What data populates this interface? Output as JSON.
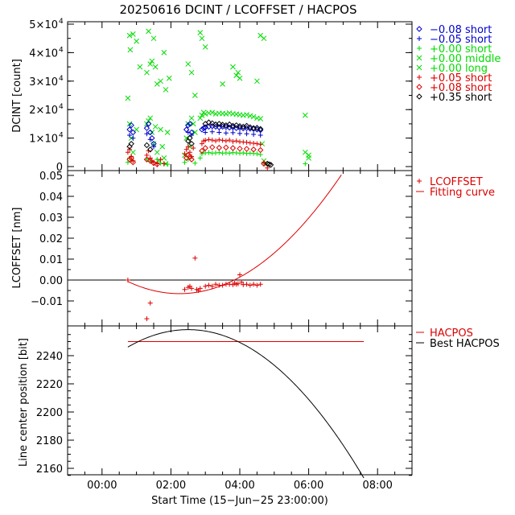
{
  "chart_data": [
    {
      "type": "scatter",
      "title": "20250616 DCINT / LCOFFSET / HACPOS",
      "ylabel": "DCINT [count]",
      "ylim": [
        0,
        50000
      ],
      "yticks": [
        {
          "v": 50000,
          "m": "5",
          "e": "4"
        },
        {
          "v": 40000,
          "m": "4",
          "e": "4"
        },
        {
          "v": 30000,
          "m": "3",
          "e": "4"
        },
        {
          "v": 20000,
          "m": "2",
          "e": "4"
        },
        {
          "v": 10000,
          "m": "1",
          "e": "4"
        },
        {
          "v": 0,
          "m": "0",
          "e": ""
        }
      ],
      "legend_position": "right",
      "legend": [
        {
          "text": "−0.08 short",
          "color": "#0000cc",
          "marker": "diamond"
        },
        {
          "text": "−0.05 short",
          "color": "#0000cc",
          "marker": "plus"
        },
        {
          "text": "+0.00 short",
          "color": "#00dd00",
          "marker": "plus"
        },
        {
          "text": "+0.00 middle",
          "color": "#00dd00",
          "marker": "x"
        },
        {
          "text": "+0.00 long",
          "color": "#00dd00",
          "marker": "x"
        },
        {
          "text": "+0.05 short",
          "color": "#dd0000",
          "marker": "plus"
        },
        {
          "text": "+0.08 short",
          "color": "#dd0000",
          "marker": "diamond"
        },
        {
          "text": "+0.35 short",
          "color": "#000000",
          "marker": "diamond"
        }
      ],
      "series": [
        {
          "name": "+0.00 long",
          "marker": "x",
          "color": "#00dd00",
          "x": [
            0.8,
            0.82,
            0.9,
            1.0,
            1.1,
            1.3,
            1.35,
            1.4,
            1.45,
            1.5,
            1.55,
            1.6,
            1.7,
            1.8,
            1.85,
            1.95,
            2.5,
            2.6,
            2.7,
            2.85,
            2.9,
            3.0,
            3.5,
            3.8,
            3.9,
            3.95,
            4.0,
            4.5,
            4.6,
            4.7,
            5.9,
            6.0
          ],
          "y": [
            46000,
            41000,
            46500,
            44000,
            35000,
            33000,
            47500,
            36000,
            37000,
            45000,
            35000,
            29000,
            30000,
            40000,
            27000,
            31000,
            36000,
            33000,
            25000,
            47000,
            45000,
            42000,
            29000,
            35000,
            32000,
            33000,
            31000,
            30000,
            46000,
            45000,
            18000,
            3000
          ]
        },
        {
          "name": "+0.00 middle",
          "marker": "x",
          "color": "#00dd00",
          "x": [
            0.75,
            0.8,
            0.85,
            0.9,
            1.0,
            1.3,
            1.35,
            1.4,
            1.45,
            1.5,
            1.55,
            1.6,
            1.65,
            1.7,
            1.75,
            1.8,
            1.85,
            1.9,
            2.4,
            2.45,
            2.5,
            2.55,
            2.6,
            2.65,
            2.7,
            2.85,
            2.9,
            2.95,
            3.0,
            3.1,
            3.2,
            3.3,
            3.4,
            3.5,
            3.6,
            3.7,
            3.8,
            3.9,
            4.0,
            4.1,
            4.2,
            4.3,
            4.4,
            4.5,
            4.6,
            4.65,
            4.7,
            4.75,
            5.9,
            6.0
          ],
          "y": [
            24000,
            15000,
            10000,
            5000,
            13000,
            15000,
            16000,
            17000,
            12000,
            8000,
            14000,
            5000,
            2000,
            13000,
            7000,
            3000,
            1000,
            12000,
            4000,
            10000,
            15000,
            7000,
            17000,
            15000,
            12000,
            17000,
            18000,
            19000,
            18500,
            18800,
            19000,
            18500,
            18700,
            18600,
            18500,
            18800,
            18500,
            18400,
            18200,
            18000,
            18200,
            17800,
            17500,
            17000,
            16800,
            8000,
            2000,
            1000,
            5000,
            4000
          ]
        },
        {
          "name": "+0.00 short",
          "marker": "plus",
          "color": "#00dd00",
          "x": [
            0.75,
            0.8,
            0.9,
            1.3,
            1.4,
            1.5,
            1.6,
            1.7,
            1.8,
            1.9,
            2.4,
            2.5,
            2.6,
            2.7,
            2.85,
            2.9,
            3.0,
            3.1,
            3.2,
            3.3,
            3.4,
            3.5,
            3.6,
            3.7,
            3.8,
            3.9,
            4.0,
            4.1,
            4.2,
            4.3,
            4.4,
            4.5,
            4.6,
            4.7,
            5.9
          ],
          "y": [
            1500,
            3000,
            2000,
            2500,
            1800,
            1500,
            2500,
            1200,
            1000,
            800,
            1500,
            2500,
            3500,
            1200,
            3000,
            4500,
            4800,
            4900,
            4700,
            4800,
            4900,
            4700,
            4800,
            4700,
            4900,
            4800,
            4700,
            4800,
            4600,
            4700,
            4600,
            4500,
            4200,
            1200,
            1000
          ]
        },
        {
          "name": "−0.08 short",
          "marker": "diamond",
          "color": "#0000cc",
          "x": [
            0.8,
            0.85,
            0.9,
            1.3,
            1.35,
            1.4,
            1.45,
            1.5,
            2.45,
            2.5,
            2.55,
            2.6,
            2.9,
            2.95,
            3.0,
            3.1,
            3.2,
            3.3,
            3.4,
            3.5,
            3.6,
            3.7,
            3.8,
            3.9,
            4.0,
            4.1,
            4.2,
            4.3,
            4.4,
            4.5,
            4.6
          ],
          "y": [
            13000,
            14500,
            12000,
            13500,
            15000,
            12000,
            10000,
            8000,
            13000,
            14500,
            15000,
            12000,
            13000,
            13500,
            13800,
            14000,
            14200,
            14000,
            13800,
            14000,
            13900,
            13700,
            13800,
            13500,
            13600,
            13400,
            13500,
            13300,
            13200,
            13000,
            12800
          ]
        },
        {
          "name": "−0.05 short",
          "marker": "plus",
          "color": "#0000cc",
          "x": [
            0.8,
            0.9,
            1.3,
            1.4,
            1.5,
            2.5,
            2.6,
            3.0,
            3.2,
            3.4,
            3.6,
            3.8,
            4.0,
            4.2,
            4.4,
            4.6
          ],
          "y": [
            11000,
            10000,
            11500,
            9500,
            7000,
            12000,
            11000,
            12000,
            12200,
            12000,
            11800,
            11900,
            11600,
            11500,
            11300,
            11000
          ]
        },
        {
          "name": "+0.05 short",
          "marker": "plus",
          "color": "#dd0000",
          "x": [
            0.75,
            0.8,
            0.85,
            0.9,
            1.3,
            1.35,
            1.4,
            1.45,
            1.5,
            1.6,
            1.7,
            1.8,
            2.4,
            2.45,
            2.5,
            2.55,
            2.6,
            2.65,
            2.9,
            2.95,
            3.0,
            3.1,
            3.2,
            3.3,
            3.4,
            3.5,
            3.6,
            3.7,
            3.8,
            3.9,
            4.0,
            4.1,
            4.2,
            4.3,
            4.4,
            4.5,
            4.6,
            4.7,
            4.8
          ],
          "y": [
            5000,
            6000,
            3500,
            2000,
            4000,
            5500,
            3000,
            2000,
            1500,
            1000,
            2500,
            1000,
            4500,
            6000,
            7000,
            5000,
            3500,
            6500,
            8000,
            9000,
            9200,
            9500,
            9300,
            9000,
            9400,
            9200,
            9000,
            9300,
            8800,
            9000,
            8700,
            8600,
            8500,
            8300,
            8200,
            8000,
            7800,
            1500,
            -500
          ]
        },
        {
          "name": "+0.08 short",
          "marker": "diamond",
          "color": "#dd0000",
          "x": [
            0.8,
            0.85,
            0.9,
            1.3,
            1.4,
            1.5,
            1.6,
            2.45,
            2.5,
            2.55,
            2.6,
            2.9,
            3.0,
            3.2,
            3.4,
            3.6,
            3.8,
            4.0,
            4.2,
            4.4,
            4.6,
            4.7
          ],
          "y": [
            2500,
            3000,
            1500,
            2500,
            2000,
            1200,
            800,
            3000,
            4000,
            3500,
            2500,
            5500,
            6500,
            6800,
            6600,
            6700,
            6500,
            6300,
            6200,
            6000,
            5800,
            1000
          ]
        },
        {
          "name": "+0.35 short",
          "marker": "diamond",
          "color": "#000000",
          "x": [
            0.8,
            0.85,
            1.3,
            1.4,
            2.5,
            2.55,
            2.6,
            3.0,
            3.1,
            3.2,
            3.3,
            3.4,
            3.5,
            3.6,
            3.7,
            3.8,
            3.9,
            4.0,
            4.1,
            4.2,
            4.3,
            4.4,
            4.5,
            4.6,
            4.8,
            4.85,
            4.9
          ],
          "y": [
            7000,
            8000,
            7500,
            6000,
            9000,
            10000,
            8000,
            15000,
            15500,
            15200,
            14800,
            15000,
            14700,
            14500,
            14800,
            14300,
            14500,
            14200,
            14000,
            14300,
            13800,
            13500,
            13600,
            13200,
            1000,
            800,
            600
          ]
        }
      ]
    },
    {
      "type": "scatter",
      "ylabel": "LCOFFSET [nm]",
      "ylim": [
        -0.018,
        0.05
      ],
      "yticks": [
        0.05,
        0.04,
        0.03,
        0.02,
        0.01,
        0.0,
        -0.01
      ],
      "ytick_labels": [
        "0.05",
        "0.04",
        "0.03",
        "0.02",
        "0.01",
        "0.00",
        "−0.01"
      ],
      "zero_line": true,
      "legend": [
        {
          "text": "LCOFFSET",
          "color": "#dd0000",
          "marker": "plus"
        },
        {
          "text": "Fitting curve",
          "color": "#dd0000",
          "marker": "line"
        }
      ],
      "points": {
        "x": [
          0.75,
          1.3,
          1.4,
          2.4,
          2.5,
          2.55,
          2.6,
          2.7,
          2.75,
          2.8,
          2.85,
          3.0,
          3.1,
          3.2,
          3.3,
          3.4,
          3.5,
          3.6,
          3.7,
          3.8,
          3.85,
          3.9,
          3.95,
          4.0,
          4.05,
          4.1,
          4.2,
          4.3,
          4.4,
          4.5,
          4.6
        ],
        "y": [
          0.0,
          -0.0185,
          -0.011,
          -0.0045,
          -0.0035,
          -0.003,
          -0.004,
          0.0105,
          -0.0045,
          -0.005,
          -0.004,
          -0.003,
          -0.0025,
          -0.003,
          -0.002,
          -0.0025,
          -0.0025,
          -0.002,
          -0.002,
          -0.0022,
          -0.0015,
          -0.002,
          -0.0018,
          0.0025,
          -0.001,
          -0.0022,
          -0.002,
          -0.0025,
          -0.002,
          -0.0025,
          -0.002
        ]
      },
      "fit": {
        "x0": 2.25,
        "y0": -0.0065,
        "a": 0.00257,
        "x_range": [
          0.75,
          7.6
        ]
      }
    },
    {
      "type": "line",
      "ylabel": "Line center position [bit]",
      "xlabel": "Start Time (15−Jun−25 23:00:00)",
      "ylim": [
        2153,
        2260
      ],
      "xlim": [
        -1.0,
        9.0
      ],
      "yticks": [
        2160,
        2180,
        2200,
        2220,
        2240
      ],
      "ytick_labels": [
        "2160",
        "2180",
        "2200",
        "2220",
        "2240"
      ],
      "xticks": [
        0,
        2,
        4,
        6,
        8
      ],
      "xtick_labels": [
        "00:00",
        "02:00",
        "04:00",
        "06:00",
        "08:00"
      ],
      "legend": [
        {
          "text": "HACPOS",
          "color": "#dd0000",
          "marker": "line"
        },
        {
          "text": "Best HACPOS",
          "color": "#000000",
          "marker": "line"
        }
      ],
      "series": [
        {
          "name": "HACPOS",
          "color": "#dd0000",
          "x": [
            0.75,
            7.6
          ],
          "y": [
            2250,
            2250
          ]
        },
        {
          "name": "Best HACPOS",
          "color": "#000000",
          "fit": {
            "x0": 2.5,
            "y0": 2258.5,
            "a": -4.05,
            "x_range": [
              0.75,
              7.6
            ]
          }
        }
      ]
    }
  ]
}
